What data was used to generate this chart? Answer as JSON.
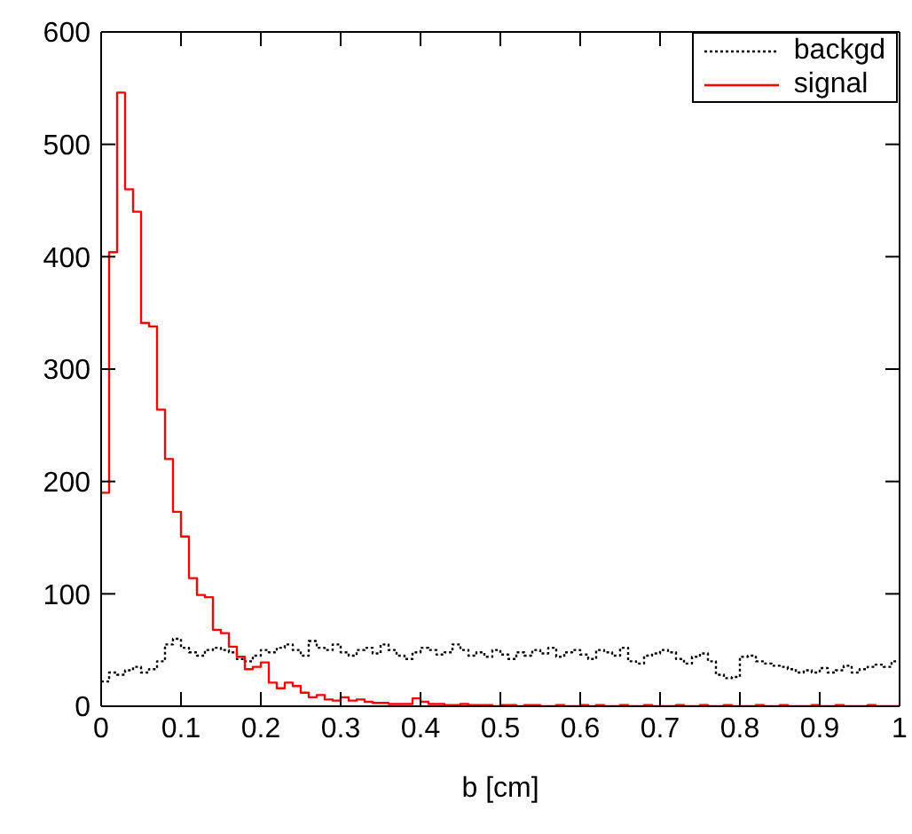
{
  "chart_data": {
    "type": "histogram",
    "xlabel": "b [cm]",
    "bins": [
      0,
      0.01,
      0.02,
      0.03,
      0.04,
      0.05,
      0.06,
      0.07,
      0.08,
      0.09,
      0.1,
      0.11,
      0.12,
      0.13,
      0.14,
      0.15,
      0.16,
      0.17,
      0.18,
      0.19,
      0.2,
      0.21,
      0.22,
      0.23,
      0.24,
      0.25,
      0.26,
      0.27,
      0.28,
      0.29,
      0.3,
      0.31,
      0.32,
      0.33,
      0.34,
      0.35,
      0.36,
      0.37,
      0.38,
      0.39,
      0.4,
      0.41,
      0.42,
      0.43,
      0.44,
      0.45,
      0.46,
      0.47,
      0.48,
      0.49,
      0.5,
      0.51,
      0.52,
      0.53,
      0.54,
      0.55,
      0.56,
      0.57,
      0.58,
      0.59,
      0.6,
      0.61,
      0.62,
      0.63,
      0.64,
      0.65,
      0.66,
      0.67,
      0.68,
      0.69,
      0.7,
      0.71,
      0.72,
      0.73,
      0.74,
      0.75,
      0.76,
      0.77,
      0.78,
      0.79,
      0.8,
      0.81,
      0.82,
      0.83,
      0.84,
      0.85,
      0.86,
      0.87,
      0.88,
      0.89,
      0.9,
      0.91,
      0.92,
      0.93,
      0.94,
      0.95,
      0.96,
      0.97,
      0.98,
      0.99,
      1
    ],
    "series": [
      {
        "name": "backgd",
        "color": "#000000",
        "line_style": "dotted",
        "values": [
          22,
          30,
          28,
          32,
          35,
          30,
          33,
          40,
          55,
          60,
          52,
          48,
          45,
          50,
          52,
          50,
          48,
          42,
          40,
          45,
          50,
          48,
          52,
          55,
          50,
          45,
          58,
          52,
          50,
          55,
          48,
          45,
          50,
          52,
          47,
          55,
          50,
          45,
          42,
          48,
          52,
          50,
          46,
          48,
          55,
          50,
          45,
          48,
          44,
          50,
          46,
          42,
          48,
          45,
          50,
          47,
          52,
          44,
          48,
          50,
          46,
          42,
          50,
          48,
          45,
          52,
          40,
          38,
          45,
          47,
          50,
          48,
          42,
          38,
          44,
          47,
          40,
          28,
          25,
          26,
          44,
          45,
          40,
          38,
          36,
          35,
          33,
          30,
          32,
          30,
          34,
          30,
          32,
          36,
          30,
          33,
          35,
          37,
          35,
          40
        ]
      },
      {
        "name": "signal",
        "color": "#ff0000",
        "line_style": "solid",
        "values": [
          190,
          404,
          546,
          460,
          440,
          341,
          338,
          264,
          220,
          173,
          151,
          114,
          99,
          97,
          68,
          65,
          53,
          44,
          33,
          35,
          39,
          21,
          16,
          21,
          18,
          12,
          8,
          10,
          6,
          5,
          8,
          5,
          6,
          4,
          3,
          3,
          2,
          2,
          2,
          7,
          4,
          2,
          2,
          1,
          1,
          2,
          1,
          1,
          1,
          0,
          1,
          1,
          0,
          1,
          1,
          0,
          0,
          1,
          0,
          0,
          1,
          0,
          1,
          0,
          0,
          1,
          0,
          0,
          1,
          0,
          0,
          0,
          1,
          0,
          0,
          1,
          0,
          0,
          1,
          0,
          0,
          0,
          1,
          0,
          0,
          1,
          0,
          0,
          0,
          1,
          0,
          0,
          1,
          0,
          0,
          0,
          1,
          0,
          0,
          0
        ]
      }
    ],
    "xlim": [
      0,
      1
    ],
    "xticks": [
      0,
      0.1,
      0.2,
      0.3,
      0.4,
      0.5,
      0.6,
      0.7,
      0.8,
      0.9,
      1
    ],
    "ylim": [
      0,
      600
    ],
    "yticks": [
      0,
      100,
      200,
      300,
      400,
      500,
      600
    ],
    "grid": false,
    "legend": "top right"
  }
}
